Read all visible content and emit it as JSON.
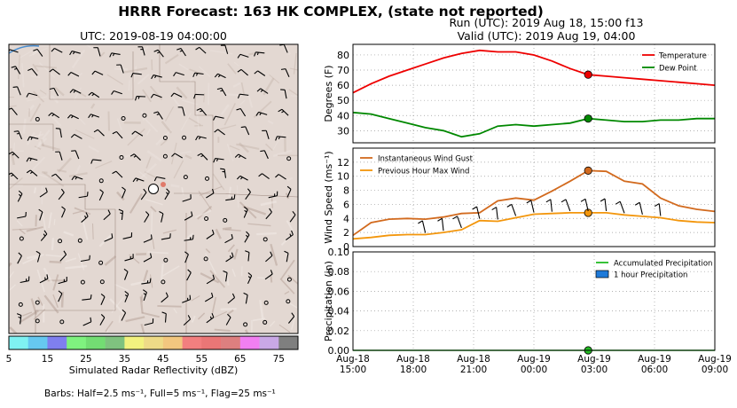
{
  "title": "HRRR Forecast: 163 HK COMPLEX, (state not reported)",
  "run_label": "Run (UTC): 2019 Aug 18, 15:00 f13",
  "valid_label": "Valid (UTC): 2019 Aug 19, 04:00",
  "map": {
    "utc_label": "UTC: 2019-08-19 04:00:00",
    "colorbar": {
      "label": "Simulated Radar Reflectivity (dBZ)",
      "ticks": [
        "5",
        "15",
        "25",
        "35",
        "45",
        "55",
        "65",
        "75"
      ],
      "colors": [
        "#7ff2f2",
        "#66c8f0",
        "#7f7fef",
        "#7ff27f",
        "#73dd73",
        "#7fc27f",
        "#f2f27f",
        "#eedb87",
        "#f2c77f",
        "#f27f7f",
        "#ea7676",
        "#dd7f7f",
        "#f27ff2",
        "#c9a8e6",
        "#7f7f7f"
      ]
    },
    "barbs_caption": "Barbs: Half=2.5 ms⁻¹, Full=5 ms⁻¹, Flag=25 ms⁻¹"
  },
  "chart_data": [
    {
      "type": "line",
      "ylabel": "Degrees (F)",
      "ylim": [
        22,
        87
      ],
      "yticks": [
        30,
        40,
        50,
        60,
        70,
        80
      ],
      "grid": true,
      "legend": "top-right",
      "series": [
        {
          "name": "Temperature",
          "color": "#ee0000",
          "values": [
            55,
            61,
            66,
            70,
            74,
            78,
            81,
            83,
            82,
            82,
            80,
            76,
            71,
            67,
            66,
            65,
            64,
            63,
            62,
            61,
            60
          ]
        },
        {
          "name": "Dew Point",
          "color": "#008800",
          "values": [
            42,
            41,
            38,
            35,
            32,
            30,
            26,
            28,
            33,
            34,
            33,
            34,
            35,
            38,
            37,
            36,
            36,
            37,
            37,
            38,
            38
          ]
        }
      ],
      "highlight_index": 13
    },
    {
      "type": "line",
      "ylabel": "Wind Speed (ms⁻¹)",
      "ylim": [
        0,
        14
      ],
      "yticks": [
        0,
        2,
        4,
        6,
        8,
        10,
        12
      ],
      "grid": true,
      "legend": "top-left",
      "series": [
        {
          "name": "Instantaneous Wind Gust",
          "color": "#d26a1e",
          "values": [
            1.6,
            3.4,
            3.9,
            4.0,
            3.9,
            4.2,
            4.7,
            4.8,
            6.5,
            6.9,
            6.6,
            7.9,
            9.3,
            10.8,
            10.7,
            9.3,
            8.9,
            6.9,
            5.8,
            5.3,
            5.0
          ]
        },
        {
          "name": "Previous Hour Max Wind",
          "color": "#f3960c",
          "values": [
            1.1,
            1.3,
            1.6,
            1.7,
            1.7,
            2.0,
            2.4,
            3.7,
            3.6,
            4.1,
            4.6,
            4.7,
            4.8,
            4.8,
            4.8,
            4.5,
            4.3,
            4.1,
            3.7,
            3.5,
            3.4
          ]
        }
      ],
      "highlight_index": 13,
      "barb_indices": [
        4,
        5,
        6,
        7,
        8,
        9,
        10,
        11,
        12,
        13,
        14,
        15,
        16,
        17
      ]
    },
    {
      "type": "bar",
      "ylabel": "Precipitation (in)",
      "ylim": [
        0,
        0.1
      ],
      "yticks": [
        "0.00",
        "0.02",
        "0.04",
        "0.06",
        "0.08",
        "0.10"
      ],
      "grid": true,
      "legend": "top-right",
      "series": [
        {
          "name": "Accumulated Precipitation",
          "color": "#22bb22",
          "values": [
            0,
            0,
            0,
            0,
            0,
            0,
            0,
            0,
            0,
            0,
            0,
            0,
            0,
            0,
            0,
            0,
            0,
            0,
            0,
            0,
            0
          ]
        },
        {
          "name": "1 hour Precipitation",
          "color": "#1e7ad9",
          "values": [
            0,
            0,
            0,
            0,
            0,
            0,
            0,
            0,
            0,
            0,
            0,
            0,
            0,
            0,
            0,
            0,
            0,
            0,
            0,
            0,
            0
          ]
        }
      ],
      "highlight_index": 13,
      "xtick_labels": [
        [
          "Aug-18",
          "15:00"
        ],
        [
          "Aug-18",
          "18:00"
        ],
        [
          "Aug-18",
          "21:00"
        ],
        [
          "Aug-19",
          "00:00"
        ],
        [
          "Aug-19",
          "03:00"
        ],
        [
          "Aug-19",
          "06:00"
        ],
        [
          "Aug-19",
          "09:00"
        ]
      ]
    }
  ]
}
